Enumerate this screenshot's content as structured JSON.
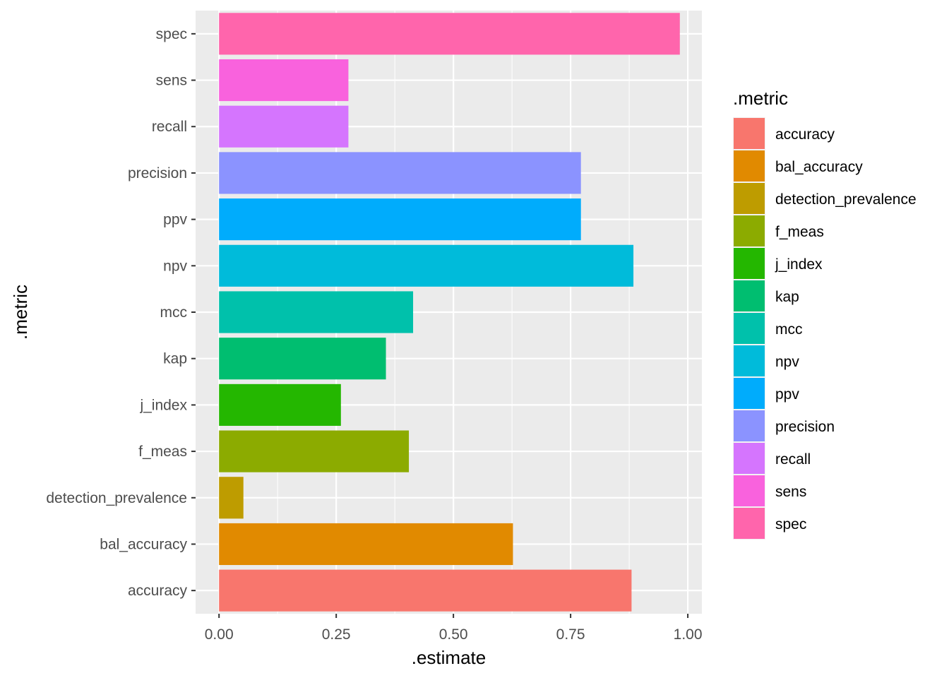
{
  "chart_data": {
    "type": "bar",
    "orientation": "horizontal",
    "xlabel": ".estimate",
    "ylabel": ".metric",
    "xlim": [
      -0.05,
      1.03
    ],
    "x_ticks": [
      "0.00",
      "0.25",
      "0.50",
      "0.75",
      "1.00"
    ],
    "x_tick_values": [
      0,
      0.25,
      0.5,
      0.75,
      1.0
    ],
    "categories": [
      "accuracy",
      "bal_accuracy",
      "detection_prevalence",
      "f_meas",
      "j_index",
      "kap",
      "mcc",
      "npv",
      "ppv",
      "precision",
      "recall",
      "sens",
      "spec"
    ],
    "values": [
      0.88,
      0.627,
      0.052,
      0.405,
      0.26,
      0.356,
      0.414,
      0.884,
      0.772,
      0.772,
      0.276,
      0.276,
      0.983
    ],
    "colors": [
      "#F8766D",
      "#E18A00",
      "#BE9C00",
      "#8CAB00",
      "#24B700",
      "#00BE70",
      "#00C1AB",
      "#00BBDA",
      "#00ACFC",
      "#8B93FF",
      "#D575FE",
      "#F962DD",
      "#FF65AC"
    ],
    "grid": true,
    "panel_background": "#EBEBEB",
    "grid_color": "#FFFFFF",
    "legend": {
      "title": ".metric",
      "position": "right",
      "entries": [
        "accuracy",
        "bal_accuracy",
        "detection_prevalence",
        "f_meas",
        "j_index",
        "kap",
        "mcc",
        "npv",
        "ppv",
        "precision",
        "recall",
        "sens",
        "spec"
      ]
    }
  }
}
